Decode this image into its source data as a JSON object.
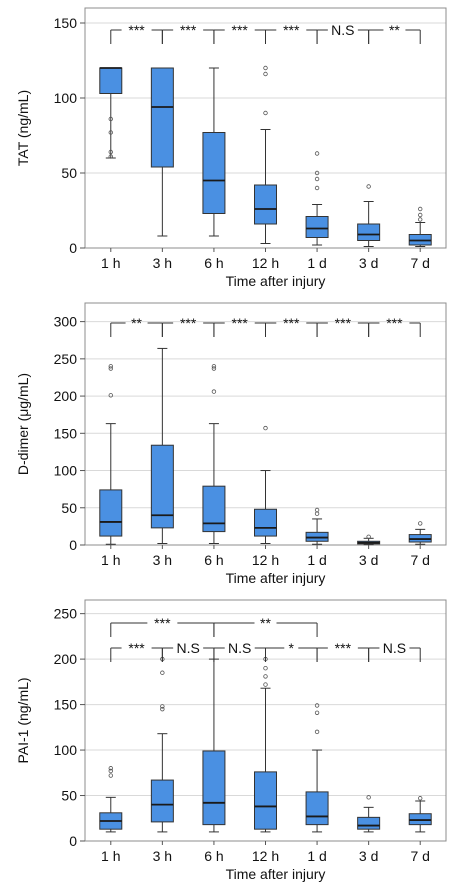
{
  "chart_data": [
    {
      "type": "box",
      "ylabel": "TAT (ng/mL)",
      "xlabel": "Time after injury",
      "ylim": [
        0,
        160
      ],
      "yticks": [
        0,
        50,
        100,
        150
      ],
      "grid": true,
      "color": "#4a90e2",
      "categories": [
        "1 h",
        "3 h",
        "6 h",
        "12 h",
        "1 d",
        "3 d",
        "7 d"
      ],
      "boxes": [
        {
          "min": 60,
          "q1": 103,
          "median": 120,
          "q3": 120,
          "max": 120,
          "outliers": [
            64,
            61,
            77,
            86
          ]
        },
        {
          "min": 8,
          "q1": 54,
          "median": 94,
          "q3": 120,
          "max": 120,
          "outliers": []
        },
        {
          "min": 8,
          "q1": 23,
          "median": 45,
          "q3": 77,
          "max": 120,
          "outliers": []
        },
        {
          "min": 3,
          "q1": 16,
          "median": 26,
          "q3": 42,
          "max": 79,
          "outliers": [
            120,
            116,
            90
          ]
        },
        {
          "min": 2,
          "q1": 7,
          "median": 13,
          "q3": 21,
          "max": 29,
          "outliers": [
            63,
            50,
            46,
            40
          ]
        },
        {
          "min": 1,
          "q1": 5,
          "median": 9,
          "q3": 16,
          "max": 31,
          "outliers": [
            41
          ]
        },
        {
          "min": 1,
          "q1": 2,
          "median": 5,
          "q3": 9,
          "max": 17,
          "outliers": [
            26,
            22,
            19
          ]
        }
      ],
      "brackets": [
        {
          "from": 0,
          "to": 1,
          "label": "***",
          "level": 0
        },
        {
          "from": 1,
          "to": 2,
          "label": "***",
          "level": 0
        },
        {
          "from": 2,
          "to": 3,
          "label": "***",
          "level": 0
        },
        {
          "from": 3,
          "to": 4,
          "label": "***",
          "level": 0
        },
        {
          "from": 4,
          "to": 5,
          "label": "N.S",
          "level": 0
        },
        {
          "from": 5,
          "to": 6,
          "label": "**",
          "level": 0
        }
      ]
    },
    {
      "type": "box",
      "ylabel": "D-dimer (μg/mL)",
      "xlabel": "Time after injury",
      "ylim": [
        0,
        325
      ],
      "yticks": [
        0,
        50,
        100,
        150,
        200,
        250,
        300
      ],
      "grid": true,
      "color": "#4a90e2",
      "categories": [
        "1 h",
        "3 h",
        "6 h",
        "12 h",
        "1 d",
        "3 d",
        "7 d"
      ],
      "boxes": [
        {
          "min": 1,
          "q1": 12,
          "median": 31,
          "q3": 74,
          "max": 163,
          "outliers": [
            240,
            237,
            201
          ]
        },
        {
          "min": 2,
          "q1": 23,
          "median": 40,
          "q3": 134,
          "max": 264,
          "outliers": []
        },
        {
          "min": 2,
          "q1": 18,
          "median": 29,
          "q3": 79,
          "max": 163,
          "outliers": [
            240,
            237,
            206
          ]
        },
        {
          "min": 2,
          "q1": 12,
          "median": 23,
          "q3": 48,
          "max": 100,
          "outliers": [
            157
          ]
        },
        {
          "min": 1,
          "q1": 5,
          "median": 10,
          "q3": 17,
          "max": 35,
          "outliers": [
            47,
            42
          ]
        },
        {
          "min": 0.5,
          "q1": 1.5,
          "median": 3,
          "q3": 5,
          "max": 9,
          "outliers": [
            11
          ]
        },
        {
          "min": 1,
          "q1": 4,
          "median": 8,
          "q3": 14,
          "max": 21,
          "outliers": [
            29
          ]
        }
      ],
      "brackets": [
        {
          "from": 0,
          "to": 1,
          "label": "**",
          "level": 0
        },
        {
          "from": 1,
          "to": 2,
          "label": "***",
          "level": 0
        },
        {
          "from": 2,
          "to": 3,
          "label": "***",
          "level": 0
        },
        {
          "from": 3,
          "to": 4,
          "label": "***",
          "level": 0
        },
        {
          "from": 4,
          "to": 5,
          "label": "***",
          "level": 0
        },
        {
          "from": 5,
          "to": 6,
          "label": "***",
          "level": 0
        }
      ]
    },
    {
      "type": "box",
      "ylabel": "PAI-1 (ng/mL)",
      "xlabel": "Time after injury",
      "ylim": [
        0,
        265
      ],
      "yticks": [
        0,
        50,
        100,
        150,
        200,
        250
      ],
      "grid": true,
      "color": "#4a90e2",
      "categories": [
        "1 h",
        "3 h",
        "6 h",
        "12 h",
        "1 d",
        "3 d",
        "7 d"
      ],
      "boxes": [
        {
          "min": 10,
          "q1": 13,
          "median": 22,
          "q3": 31,
          "max": 48,
          "outliers": [
            80,
            77,
            72
          ]
        },
        {
          "min": 10,
          "q1": 21,
          "median": 40,
          "q3": 67,
          "max": 118,
          "outliers": [
            200,
            185,
            148,
            145
          ]
        },
        {
          "min": 10,
          "q1": 18,
          "median": 42,
          "q3": 99,
          "max": 200,
          "outliers": []
        },
        {
          "min": 10,
          "q1": 13,
          "median": 38,
          "q3": 76,
          "max": 168,
          "outliers": [
            200,
            190,
            181,
            172
          ]
        },
        {
          "min": 10,
          "q1": 18,
          "median": 27,
          "q3": 54,
          "max": 100,
          "outliers": [
            149,
            141,
            120
          ]
        },
        {
          "min": 10,
          "q1": 13,
          "median": 17,
          "q3": 26,
          "max": 37,
          "outliers": [
            48
          ]
        },
        {
          "min": 10,
          "q1": 18,
          "median": 23,
          "q3": 30,
          "max": 44,
          "outliers": [
            47
          ]
        }
      ],
      "brackets": [
        {
          "from": 0,
          "to": 1,
          "label": "***",
          "level": 0
        },
        {
          "from": 1,
          "to": 2,
          "label": "N.S",
          "level": 0
        },
        {
          "from": 2,
          "to": 3,
          "label": "N.S",
          "level": 0
        },
        {
          "from": 3,
          "to": 4,
          "label": "*",
          "level": 0
        },
        {
          "from": 4,
          "to": 5,
          "label": "***",
          "level": 0
        },
        {
          "from": 5,
          "to": 6,
          "label": "N.S",
          "level": 0
        },
        {
          "from": 0,
          "to": 2,
          "label": "***",
          "level": 1
        },
        {
          "from": 2,
          "to": 4,
          "label": "**",
          "level": 1
        }
      ]
    }
  ]
}
